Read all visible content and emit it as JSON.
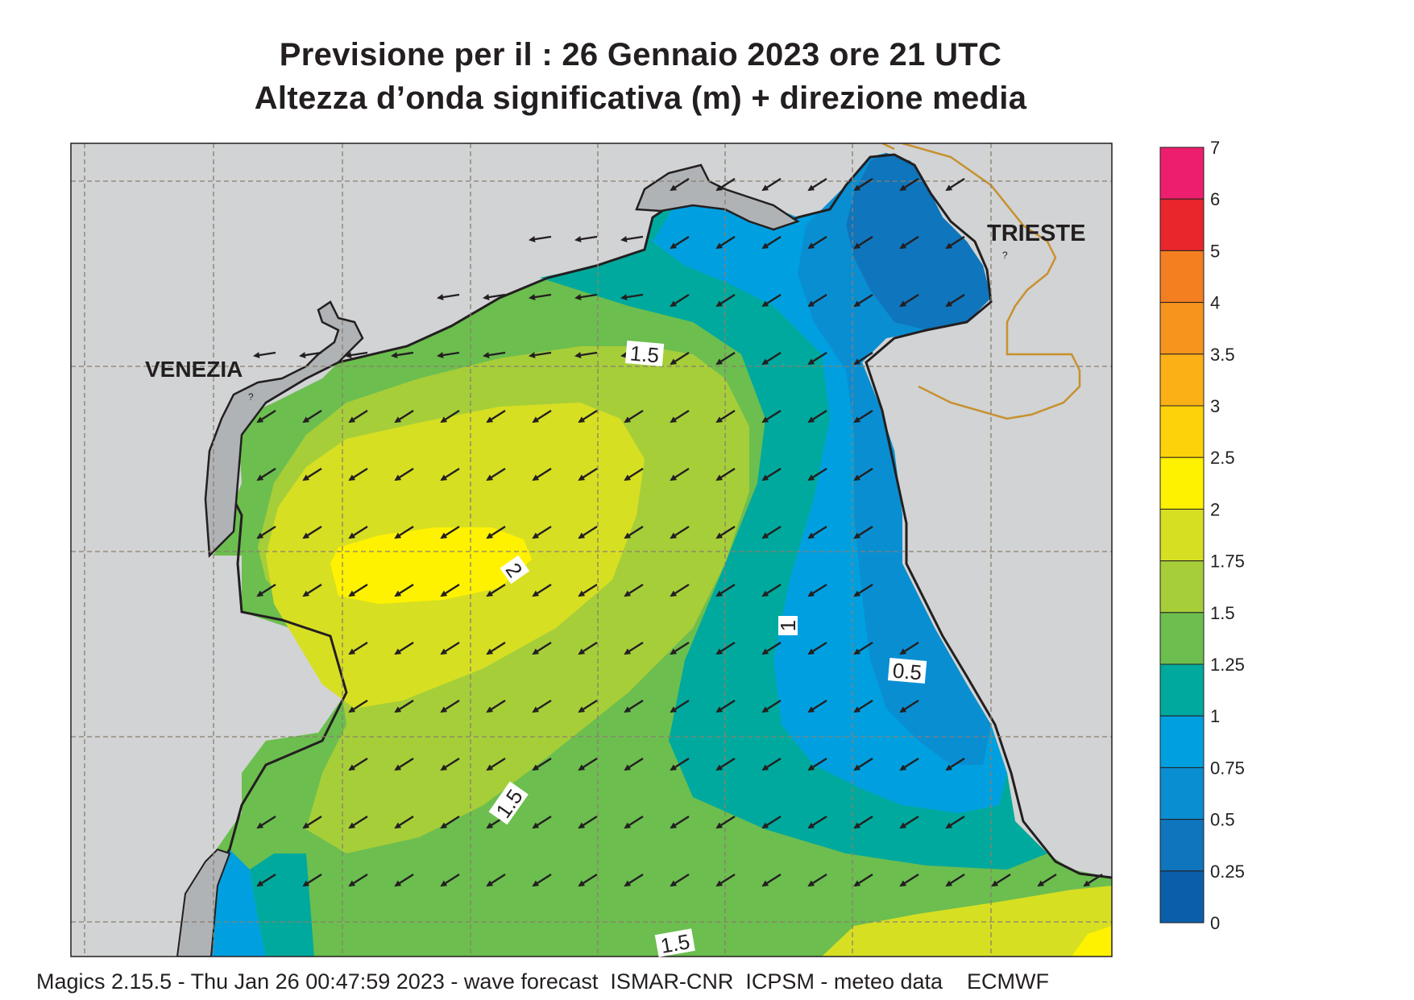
{
  "title": {
    "line1": "Previsione per il  :  26  Gennaio  2023   ore 21 UTC",
    "line2": "Altezza d’onda significativa (m) + direzione media"
  },
  "cities": {
    "venezia": "VENEZIA",
    "trieste": "TRIESTE"
  },
  "contour_labels": [
    "1.5",
    "2",
    "1",
    "0.5",
    "1.5",
    "1.5"
  ],
  "legend": {
    "labels": [
      "7",
      "6",
      "5",
      "4",
      "3.5",
      "3",
      "2.5",
      "2",
      "1.75",
      "1.5",
      "1.25",
      "1",
      "0.75",
      "0.5",
      "0.25",
      "0"
    ],
    "colors": [
      "#ee1e6e",
      "#e8262b",
      "#f37f21",
      "#f7941d",
      "#fbb016",
      "#fdd20a",
      "#fff200",
      "#d7df23",
      "#a6ce39",
      "#6cbe4f",
      "#00a99d",
      "#00a0e0",
      "#0a8ed2",
      "#0f75bc",
      "#0b5eaa"
    ]
  },
  "wave_direction": "south-west",
  "footer": "Magics 2.15.5 - Thu Jan 26 00:47:59 2023 - wave forecast  ISMAR-CNR  ICPSM - meteo data    ECMWF"
}
